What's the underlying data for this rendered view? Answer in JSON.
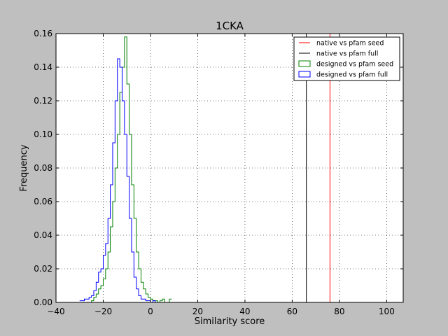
{
  "chart_data": {
    "type": "line",
    "title": "1CKA",
    "xlabel": "Similarity score",
    "ylabel": "Frequency",
    "xlim": [
      -40,
      107
    ],
    "ylim": [
      0,
      0.16
    ],
    "x_ticks": [
      -40,
      -20,
      0,
      20,
      40,
      60,
      80,
      100
    ],
    "x_tick_labels": [
      "−40",
      "−20",
      "0",
      "20",
      "40",
      "60",
      "80",
      "100"
    ],
    "y_ticks": [
      0,
      0.02,
      0.04,
      0.06,
      0.08,
      0.1,
      0.12,
      0.14,
      0.16
    ],
    "y_tick_labels": [
      "0.00",
      "0.02",
      "0.04",
      "0.06",
      "0.08",
      "0.10",
      "0.12",
      "0.14",
      "0.16"
    ],
    "grid": true,
    "legend_position": "top-right",
    "series": [
      {
        "name": "native vs pfam seed",
        "kind": "vline",
        "color": "#ff0000",
        "x": 76
      },
      {
        "name": "native vs pfam full",
        "kind": "vline",
        "color": "#000000",
        "x": 66
      },
      {
        "name": "designed vs pfam seed",
        "kind": "step",
        "color": "#008000",
        "x": [
          -27,
          -25,
          -24,
          -23,
          -22,
          -21,
          -20,
          -19,
          -18,
          -17,
          -16,
          -15,
          -14,
          -13,
          -12,
          -11,
          -10,
          -9,
          -8,
          -7,
          -6,
          -5,
          -4,
          -3,
          -2,
          -1,
          0,
          1,
          2,
          3,
          4,
          5,
          6,
          7,
          8
        ],
        "y": [
          0.0,
          0.001,
          0.003,
          0.005,
          0.008,
          0.01,
          0.014,
          0.02,
          0.03,
          0.045,
          0.06,
          0.08,
          0.1,
          0.125,
          0.14,
          0.158,
          0.13,
          0.1,
          0.07,
          0.05,
          0.03,
          0.02,
          0.012,
          0.008,
          0.005,
          0.003,
          0.002,
          0.001,
          0.001,
          0.0,
          0.001,
          0.002,
          0.0,
          0.0,
          0.002
        ]
      },
      {
        "name": "designed vs pfam full",
        "kind": "step",
        "color": "#0000ff",
        "x": [
          -30,
          -28,
          -26,
          -25,
          -24,
          -23,
          -22,
          -21,
          -20,
          -19,
          -18,
          -17,
          -16,
          -15,
          -14,
          -13,
          -12,
          -11,
          -10,
          -9,
          -8,
          -7,
          -6,
          -5,
          -4,
          -3,
          -2,
          -1,
          0,
          1,
          2
        ],
        "y": [
          0.001,
          0.002,
          0.003,
          0.004,
          0.007,
          0.012,
          0.018,
          0.02,
          0.028,
          0.035,
          0.05,
          0.07,
          0.095,
          0.12,
          0.145,
          0.14,
          0.12,
          0.1,
          0.075,
          0.05,
          0.03,
          0.015,
          0.008,
          0.004,
          0.002,
          0.002,
          0.001,
          0.001,
          0.0,
          0.001,
          0.0
        ]
      }
    ]
  }
}
